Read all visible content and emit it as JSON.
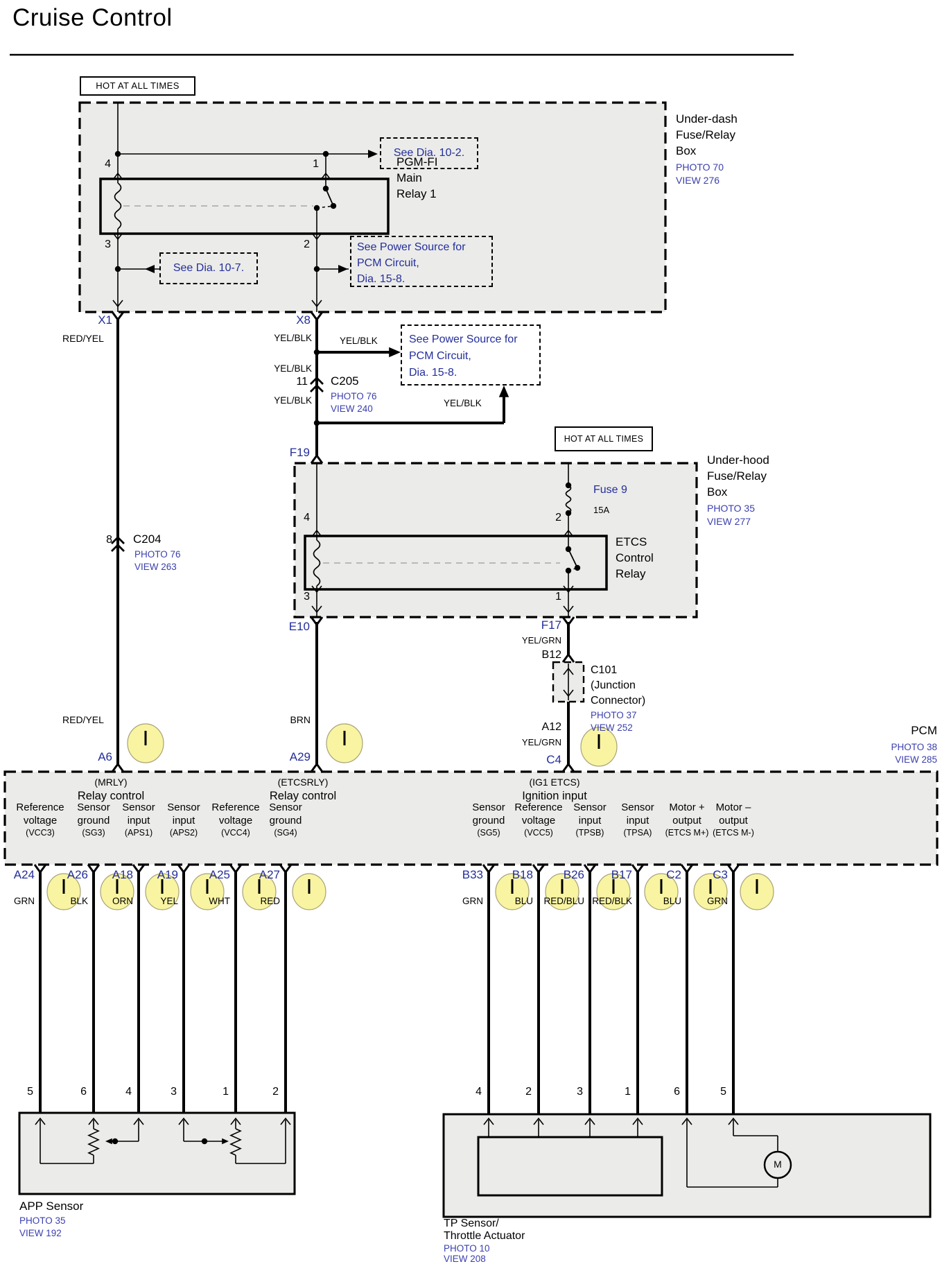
{
  "page": {
    "title": "Cruise Control"
  },
  "banners": {
    "underdash_hot": "HOT AT ALL TIMES",
    "underhood_hot": "HOT AT  ALL  TIMES"
  },
  "underdash_box": {
    "title": "Under-dash\nFuse/Relay\nBox",
    "photo": "PHOTO 70",
    "view": "VIEW 276"
  },
  "underhood_box": {
    "title": "Under-hood\nFuse/Relay\nBox",
    "photo": "PHOTO 35",
    "view": "VIEW 277"
  },
  "pgmfi_relay": {
    "name": "PGM-FI\nMain\nRelay 1",
    "pin4": "4",
    "pin1": "1",
    "pin3": "3",
    "pin2": "2"
  },
  "etcs_relay": {
    "name": "ETCS\nControl\nRelay",
    "pin4": "4",
    "pin2": "2",
    "pin3": "3",
    "pin1": "1"
  },
  "fuse9": {
    "name": "Fuse 9",
    "rating": "15A"
  },
  "refs": {
    "dia_10_2": "See  Dia.   10-2.",
    "dia_10_7": "See  Dia.   10-7.",
    "pcm_power_a": "See Power Source for\nPCM Circuit,\nDia.   15-8.",
    "pcm_power_b": "See Power Source for\nPCM Circuit,\nDia.   15-8."
  },
  "connectors": {
    "x1": "X1",
    "x8": "X8",
    "f19": "F19",
    "e10": "E10",
    "f17": "F17",
    "b12": "B12",
    "a12": "A12",
    "c4": "C4",
    "a6": "A6",
    "a29": "A29",
    "c205": {
      "id": "C205",
      "pin": "11",
      "photo": "PHOTO 76",
      "view": "VIEW 240"
    },
    "c204": {
      "id": "C204",
      "pin": "8",
      "photo": "PHOTO 76",
      "view": "VIEW 263"
    },
    "c101": {
      "id": "C101\n(Junction\nConnector)",
      "photo": "PHOTO 37",
      "view": "VIEW 252"
    }
  },
  "wire_colors": {
    "red_yel": "RED/YEL",
    "yel_blk": "YEL/BLK",
    "yel_grn": "YEL/GRN",
    "brn": "BRN"
  },
  "pcm": {
    "name": "PCM",
    "photo": "PHOTO 38",
    "view": "VIEW 285",
    "groups": {
      "mrly": {
        "tag": "(MRLY)",
        "func": "Relay control"
      },
      "etcsrly": {
        "tag": "(ETCSRLY)",
        "func": "Relay control"
      },
      "ig1etcs": {
        "tag": "(IG1 ETCS)",
        "func": "Ignition input"
      }
    },
    "left_pins": [
      {
        "func": "Reference\nvoltage",
        "tag": "(VCC3)",
        "pin": "A24",
        "wire": "GRN",
        "dest_pin": "5"
      },
      {
        "func": "Sensor\nground",
        "tag": "(SG3)",
        "pin": "A26",
        "wire": "BLK",
        "dest_pin": "6"
      },
      {
        "func": "Sensor\ninput",
        "tag": "(APS1)",
        "pin": "A18",
        "wire": "ORN",
        "dest_pin": "4"
      },
      {
        "func": "Sensor\ninput",
        "tag": "(APS2)",
        "pin": "A19",
        "wire": "YEL",
        "dest_pin": "3"
      },
      {
        "func": "Reference\nvoltage",
        "tag": "(VCC4)",
        "pin": "A25",
        "wire": "WHT",
        "dest_pin": "1"
      },
      {
        "func": "Sensor\nground",
        "tag": "(SG4)",
        "pin": "A27",
        "wire": "RED",
        "dest_pin": "2"
      }
    ],
    "right_pins": [
      {
        "func": "Sensor\nground",
        "tag": "(SG5)",
        "pin": "B33",
        "wire": "GRN",
        "dest_pin": "4"
      },
      {
        "func": "Reference\nvoltage",
        "tag": "(VCC5)",
        "pin": "B18",
        "wire": "BLU",
        "dest_pin": "2"
      },
      {
        "func": "Sensor\ninput",
        "tag": "(TPSB)",
        "pin": "B26",
        "wire": "RED/BLU",
        "dest_pin": "3"
      },
      {
        "func": "Sensor\ninput",
        "tag": "(TPSA)",
        "pin": "B17",
        "wire": "RED/BLK",
        "dest_pin": "1"
      },
      {
        "func": "Motor +\noutput",
        "tag": "(ETCS M+)",
        "pin": "C2",
        "wire": "BLU",
        "dest_pin": "6"
      },
      {
        "func": "Motor –\noutput",
        "tag": "(ETCS M-)",
        "pin": "C3",
        "wire": "GRN",
        "dest_pin": "5"
      }
    ]
  },
  "app_sensor": {
    "name": "APP  Sensor",
    "photo": "PHOTO 35",
    "view": "VIEW 192"
  },
  "tp_sensor": {
    "name": "TP Sensor/\nThrottle Actuator",
    "photo": "PHOTO 10",
    "view": "VIEW 208",
    "motor": "M"
  },
  "colors": {
    "ref_blue": "#232e9b",
    "box_fill": "#ebebe9",
    "highlight_yellow": "#f8f4a2"
  }
}
